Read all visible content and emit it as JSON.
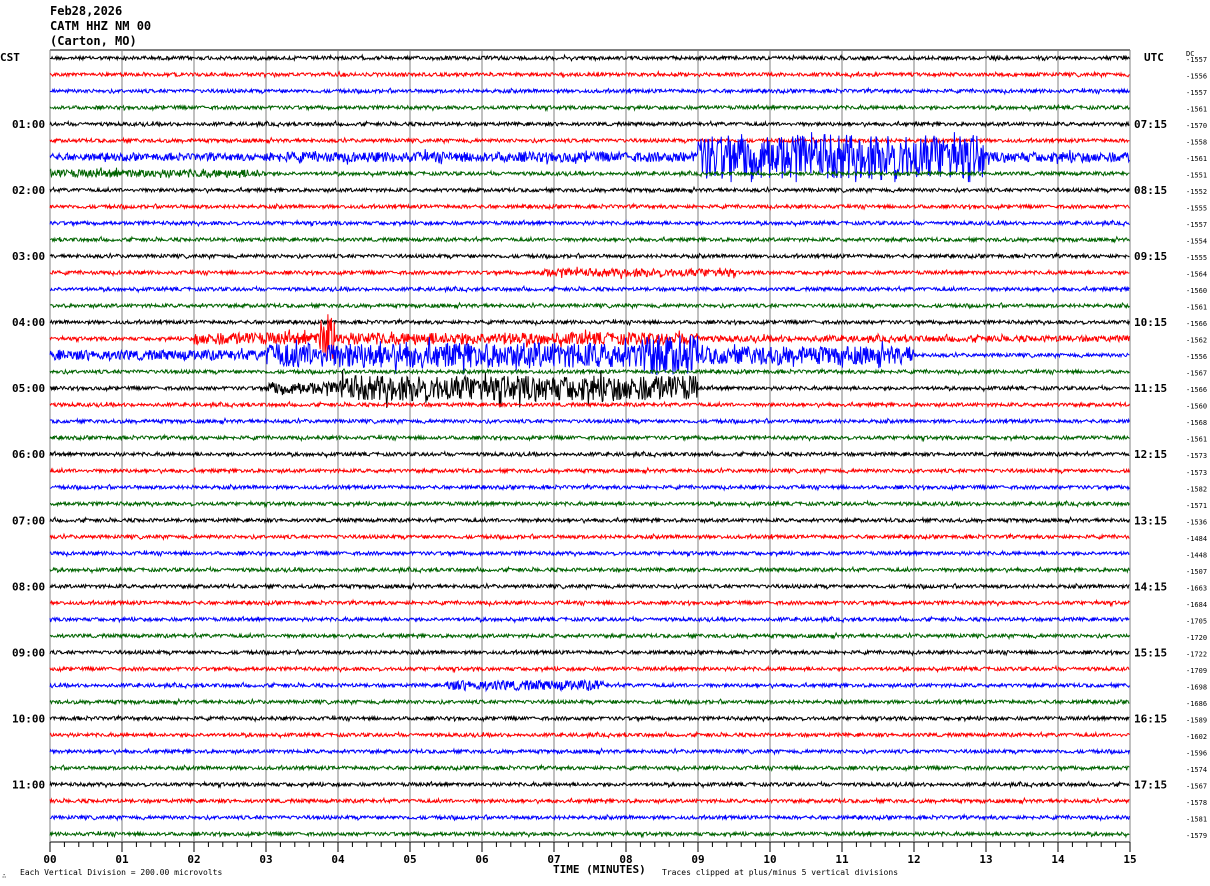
{
  "header": {
    "date": "Feb28,2026",
    "station": "CATM HHZ NM 00",
    "location": "(Carton, MO)"
  },
  "chart_data": {
    "type": "line",
    "subtype": "helicorder",
    "left_timezone": "CST",
    "right_timezone": "UTC",
    "dc_header": "DC",
    "xlabel": "TIME (MINUTES)",
    "x_ticks": [
      "00",
      "01",
      "02",
      "03",
      "04",
      "05",
      "06",
      "07",
      "08",
      "09",
      "10",
      "11",
      "12",
      "13",
      "14",
      "15"
    ],
    "xlim": [
      0,
      15
    ],
    "grid": true,
    "trace_colors": [
      "#000000",
      "#ff0000",
      "#0000ff",
      "#006400"
    ],
    "left_time_labels": [
      {
        "trace": 4,
        "label": "01:00"
      },
      {
        "trace": 8,
        "label": "02:00"
      },
      {
        "trace": 12,
        "label": "03:00"
      },
      {
        "trace": 16,
        "label": "04:00"
      },
      {
        "trace": 20,
        "label": "05:00"
      },
      {
        "trace": 24,
        "label": "06:00"
      },
      {
        "trace": 28,
        "label": "07:00"
      },
      {
        "trace": 32,
        "label": "08:00"
      },
      {
        "trace": 36,
        "label": "09:00"
      },
      {
        "trace": 40,
        "label": "10:00"
      },
      {
        "trace": 44,
        "label": "11:00"
      }
    ],
    "right_time_labels": [
      {
        "trace": 4,
        "label": "07:15"
      },
      {
        "trace": 8,
        "label": "08:15"
      },
      {
        "trace": 12,
        "label": "09:15"
      },
      {
        "trace": 16,
        "label": "10:15"
      },
      {
        "trace": 20,
        "label": "11:15"
      },
      {
        "trace": 24,
        "label": "12:15"
      },
      {
        "trace": 28,
        "label": "13:15"
      },
      {
        "trace": 32,
        "label": "14:15"
      },
      {
        "trace": 36,
        "label": "15:15"
      },
      {
        "trace": 40,
        "label": "16:15"
      },
      {
        "trace": 44,
        "label": "17:15"
      }
    ],
    "dc_offsets": [
      -1557,
      -1556,
      -1557,
      -1561,
      -1570,
      -1558,
      -1561,
      -1551,
      -1552,
      -1555,
      -1557,
      -1554,
      -1555,
      -1564,
      -1560,
      -1561,
      -1566,
      -1562,
      -1556,
      -1567,
      -1566,
      -1560,
      -1568,
      -1561,
      -1573,
      -1573,
      -1582,
      -1571,
      -1536,
      -1484,
      -1448,
      -1507,
      -1663,
      -1684,
      -1705,
      -1720,
      -1722,
      -1709,
      -1698,
      -1686,
      -1589,
      -1602,
      -1596,
      -1574,
      -1567,
      -1578,
      -1581,
      -1579
    ],
    "noise_amplitude_divisions": 0.35,
    "events": [
      {
        "trace": 6,
        "segments": [
          {
            "from": 0,
            "to": 15,
            "amp": 0.7
          },
          {
            "from": 3,
            "to": 9,
            "amp": 1.0
          },
          {
            "from": 9,
            "to": 13,
            "amp": 4.5
          },
          {
            "from": 13,
            "to": 15,
            "amp": 1.0
          }
        ]
      },
      {
        "trace": 7,
        "segments": [
          {
            "from": 0,
            "to": 3,
            "amp": 0.8
          }
        ]
      },
      {
        "trace": 13,
        "segments": [
          {
            "from": 6.8,
            "to": 9.5,
            "amp": 0.8
          }
        ]
      },
      {
        "trace": 17,
        "segments": [
          {
            "from": 2,
            "to": 9,
            "amp": 1.2
          },
          {
            "from": 3.75,
            "to": 3.95,
            "amp": 5
          },
          {
            "from": 9,
            "to": 15,
            "amp": 0.6
          }
        ]
      },
      {
        "trace": 18,
        "segments": [
          {
            "from": 0,
            "to": 3,
            "amp": 1.0
          },
          {
            "from": 3,
            "to": 8.2,
            "amp": 2.5
          },
          {
            "from": 8.2,
            "to": 9,
            "amp": 4
          },
          {
            "from": 9,
            "to": 12,
            "amp": 1.8
          }
        ]
      },
      {
        "trace": 20,
        "segments": [
          {
            "from": 3,
            "to": 4,
            "amp": 1.2
          },
          {
            "from": 4,
            "to": 9,
            "amp": 2.5
          }
        ]
      },
      {
        "trace": 38,
        "segments": [
          {
            "from": 5.5,
            "to": 7.7,
            "amp": 1.0
          }
        ]
      }
    ]
  },
  "footer": {
    "scale_note": "Each Vertical Division =  200.00 microvolts",
    "clip_note": "Traces clipped at plus/minus 5 vertical divisions",
    "corner_mark": "∴"
  }
}
